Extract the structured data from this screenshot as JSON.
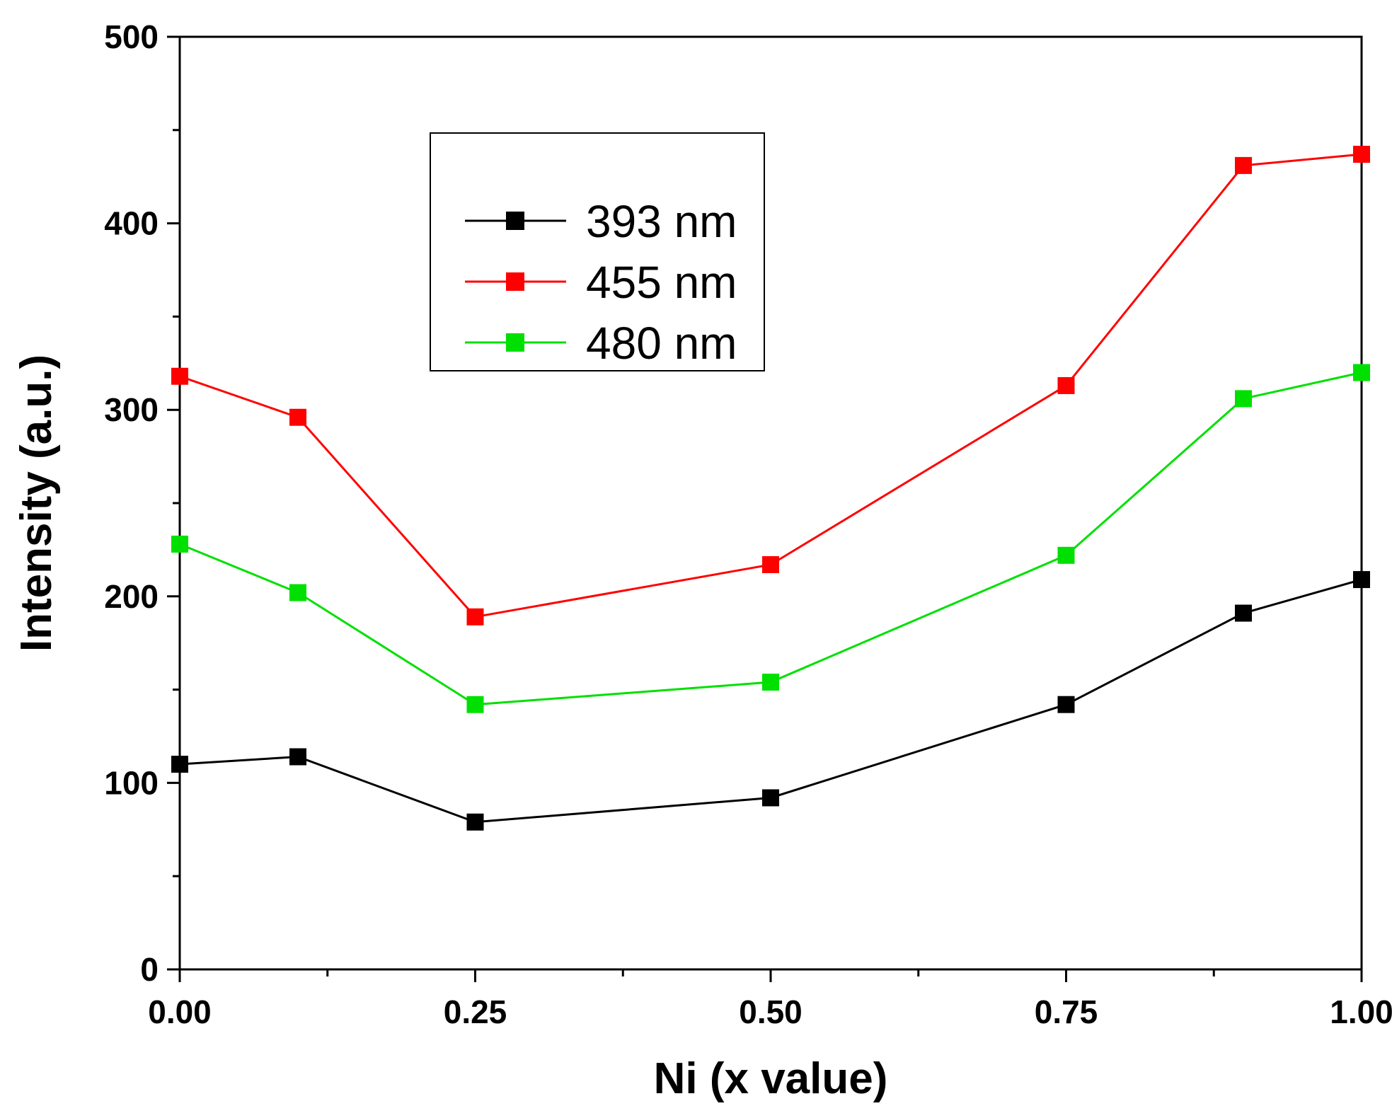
{
  "chart_data": {
    "type": "line",
    "title": "",
    "xlabel": "Ni (x value)",
    "ylabel": "Intensity (a.u.)",
    "xlim": [
      0.0,
      1.0
    ],
    "ylim": [
      0,
      500
    ],
    "x_ticks": [
      0.0,
      0.25,
      0.5,
      0.75,
      1.0
    ],
    "x_tick_labels": [
      "0.00",
      "0.25",
      "0.50",
      "0.75",
      "1.00"
    ],
    "x_minor_ticks": [
      0.125,
      0.375,
      0.625,
      0.875
    ],
    "y_ticks": [
      0,
      100,
      200,
      300,
      400,
      500
    ],
    "y_tick_labels": [
      "0",
      "100",
      "200",
      "300",
      "400",
      "500"
    ],
    "y_minor_ticks": [
      50,
      150,
      250,
      350,
      450
    ],
    "grid": false,
    "legend_position": "upper-center",
    "x": [
      0.0,
      0.1,
      0.25,
      0.5,
      0.75,
      0.9,
      1.0
    ],
    "series": [
      {
        "name": "393 nm",
        "color": "#000000",
        "values": [
          110,
          114,
          79,
          92,
          142,
          191,
          209
        ]
      },
      {
        "name": "455 nm",
        "color": "#ff0000",
        "values": [
          318,
          296,
          189,
          217,
          313,
          431,
          437
        ]
      },
      {
        "name": "480 nm",
        "color": "#00e000",
        "values": [
          228,
          202,
          142,
          154,
          222,
          306,
          320
        ]
      }
    ]
  }
}
